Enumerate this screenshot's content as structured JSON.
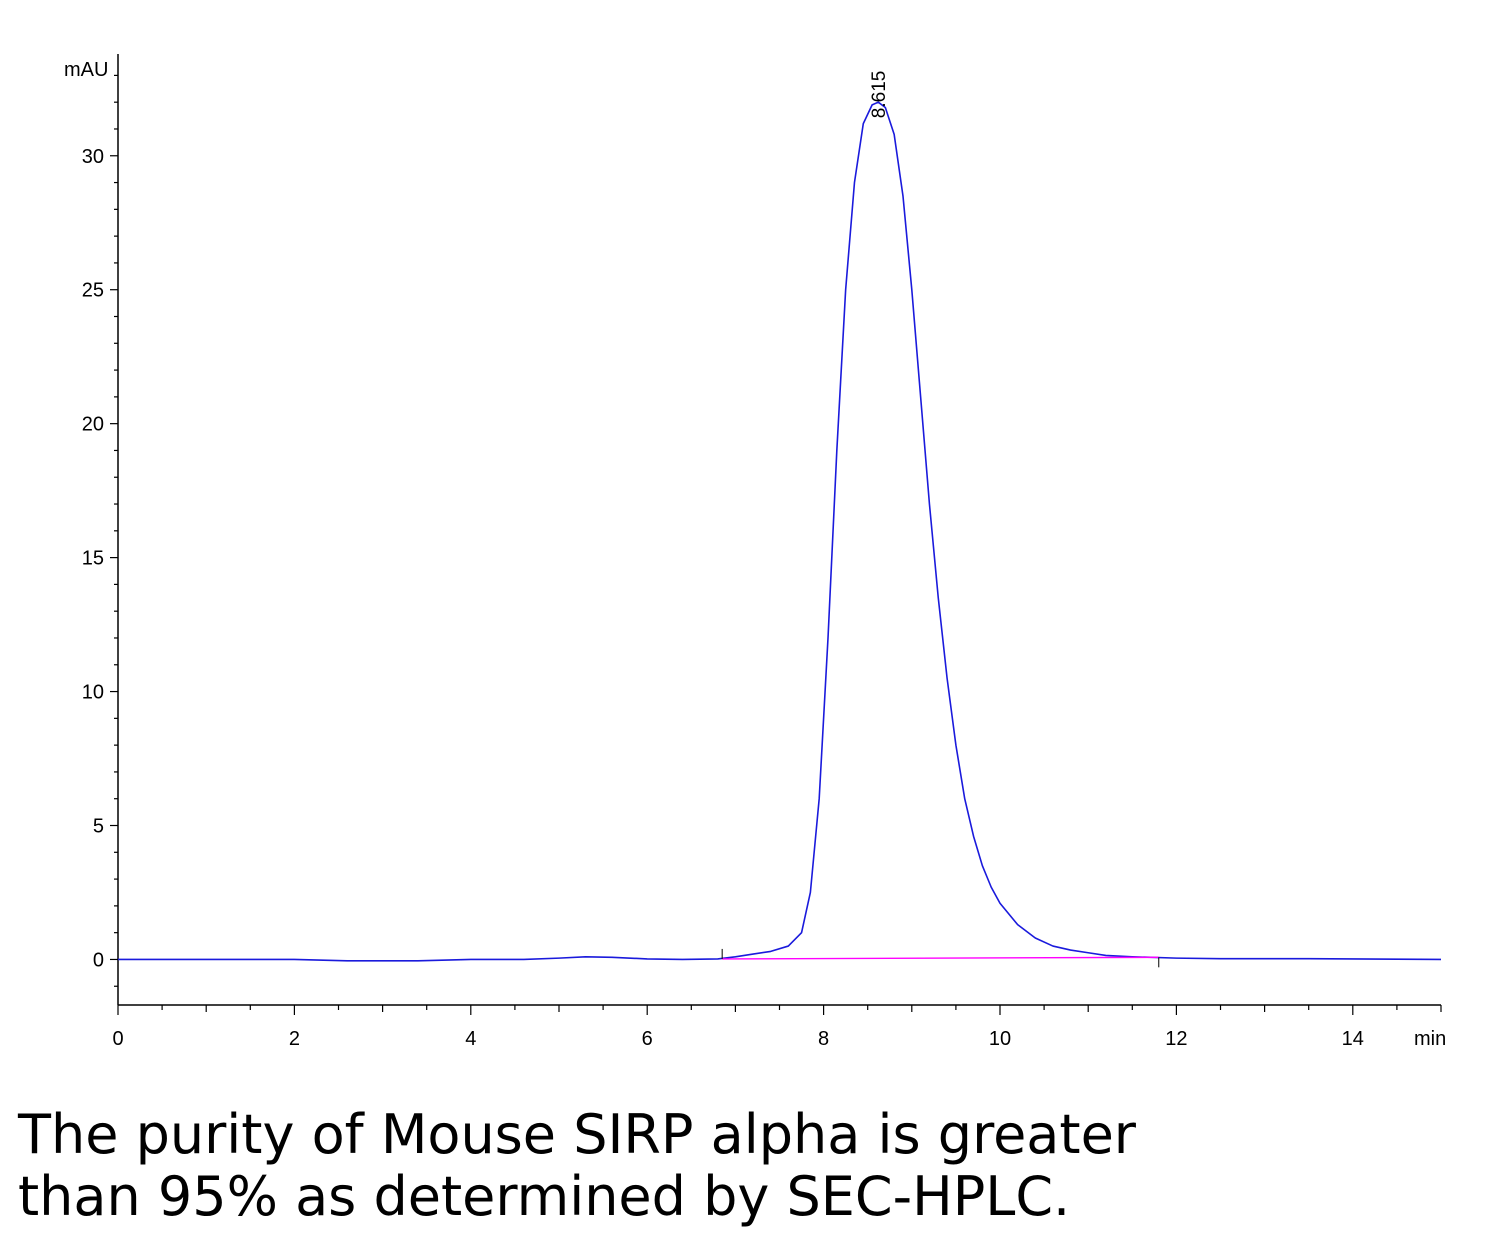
{
  "chart_data": {
    "type": "line",
    "xlabel": "min",
    "ylabel": "mAU",
    "xlim": [
      0,
      15
    ],
    "ylim": [
      -1.7,
      33.5
    ],
    "x_ticks": [
      "0",
      "2",
      "4",
      "6",
      "8",
      "10",
      "12",
      "14"
    ],
    "y_ticks": [
      "0",
      "5",
      "10",
      "15",
      "20",
      "25",
      "30"
    ],
    "grid": false,
    "series": [
      {
        "color": "#1a1adc",
        "x": [
          0,
          1,
          2,
          2.6,
          3,
          3.4,
          4,
          4.6,
          5,
          5.3,
          5.6,
          6,
          6.4,
          6.8,
          7.0,
          7.2,
          7.4,
          7.6,
          7.75,
          7.85,
          7.95,
          8.05,
          8.15,
          8.25,
          8.35,
          8.45,
          8.55,
          8.62,
          8.7,
          8.8,
          8.9,
          9.0,
          9.1,
          9.2,
          9.3,
          9.4,
          9.5,
          9.6,
          9.7,
          9.8,
          9.9,
          10.0,
          10.2,
          10.4,
          10.6,
          10.8,
          11.0,
          11.2,
          11.5,
          12.0,
          12.5,
          13.0,
          13.5,
          14.0,
          14.5,
          15.0
        ],
        "y": [
          0,
          0,
          0,
          -0.05,
          -0.05,
          -0.05,
          0,
          0,
          0.05,
          0.1,
          0.08,
          0.02,
          0,
          0.02,
          0.1,
          0.2,
          0.3,
          0.5,
          1.0,
          2.5,
          6.0,
          12.0,
          19.0,
          25.0,
          29.0,
          31.2,
          31.9,
          32.0,
          31.8,
          30.8,
          28.5,
          25.0,
          21.0,
          17.0,
          13.5,
          10.5,
          8.0,
          6.0,
          4.6,
          3.5,
          2.7,
          2.1,
          1.3,
          0.8,
          0.5,
          0.35,
          0.25,
          0.15,
          0.1,
          0.05,
          0.03,
          0.03,
          0.03,
          0.02,
          0.01,
          0
        ]
      },
      {
        "color": "#ff00ff",
        "x": [
          6.85,
          11.8
        ],
        "y": [
          0.02,
          0.08
        ]
      }
    ],
    "annotations": [
      {
        "text": "8.615",
        "x": 8.615,
        "y": 32.0
      }
    ]
  },
  "caption": {
    "line1": "The purity of Mouse SIRP alpha is greater",
    "line2": "than 95% as determined by SEC-HPLC."
  }
}
